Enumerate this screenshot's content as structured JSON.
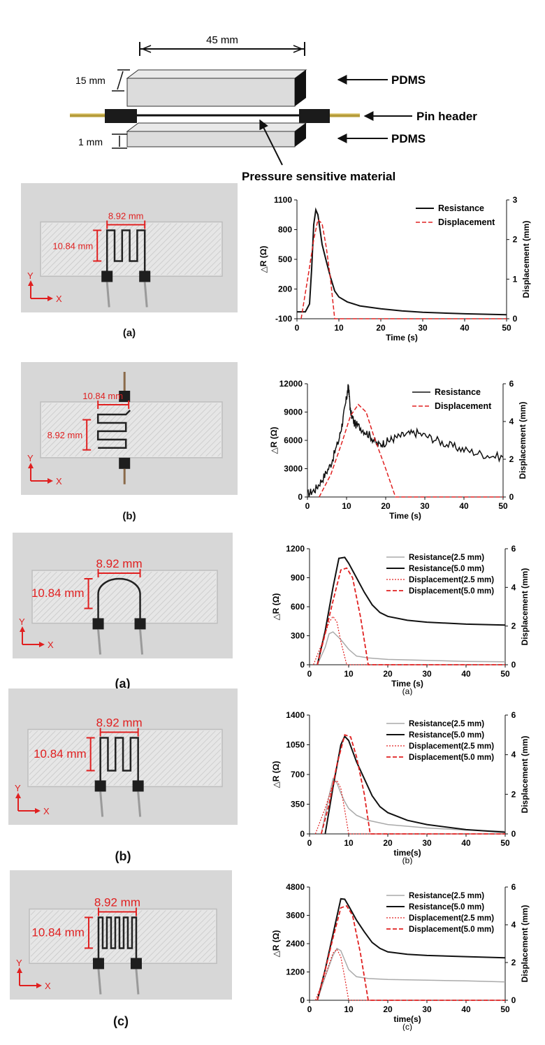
{
  "schematic": {
    "dim_length": "45 mm",
    "dim_thickness_top": "15 mm",
    "dim_thickness_bottom": "1 mm",
    "label_top": "PDMS",
    "label_middle": "Pin header",
    "label_bottom": "PDMS",
    "label_sensor": "Pressure sensitive material"
  },
  "photos": [
    {
      "label": "(a)",
      "width_dim": "8.92 mm",
      "height_dim": "10.84 mm",
      "axis_y": "Y",
      "axis_x": "X"
    },
    {
      "label": "(b)",
      "width_dim": "10.84 mm",
      "height_dim": "8.92 mm",
      "axis_y": "Y",
      "axis_x": "X"
    },
    {
      "label": "(a)",
      "width_dim": "8.92 mm",
      "height_dim": "10.84 mm",
      "axis_y": "Y",
      "axis_x": "X"
    },
    {
      "label": "(b)",
      "width_dim": "8.92 mm",
      "height_dim": "10.84 mm",
      "axis_y": "Y",
      "axis_x": "X"
    },
    {
      "label": "(c)",
      "width_dim": "8.92 mm",
      "height_dim": "10.84 mm",
      "axis_y": "Y",
      "axis_x": "X"
    }
  ],
  "colors": {
    "red": "#e02020",
    "black": "#111111",
    "gray": "#aaaaaa"
  },
  "chart_data": [
    {
      "type": "line",
      "xlabel": "Time (s)",
      "ylabel": "△R (Ω)",
      "y2label": "Displacement (mm)",
      "caption": "",
      "xlim": [
        0,
        50
      ],
      "xticks": [
        0,
        10,
        20,
        30,
        40,
        50
      ],
      "ylim": [
        -100,
        1100
      ],
      "yticks": [
        -100,
        200,
        500,
        800,
        1100
      ],
      "y2lim": [
        0,
        3
      ],
      "y2ticks": [
        0,
        1,
        2,
        3
      ],
      "legend": "top-right",
      "noise": false,
      "series": [
        {
          "name": "Resistance",
          "axis": "left",
          "color": "#111111",
          "dash": false,
          "width": 2,
          "x": [
            0,
            2,
            3,
            3.5,
            4,
            4.5,
            5,
            5.5,
            6,
            7,
            8,
            9,
            10,
            12,
            15,
            20,
            25,
            30,
            40,
            50
          ],
          "y": [
            -30,
            -30,
            50,
            400,
            850,
            1000,
            950,
            800,
            650,
            480,
            320,
            180,
            120,
            70,
            30,
            0,
            -20,
            -35,
            -50,
            -60
          ]
        },
        {
          "name": "Displacement",
          "axis": "right",
          "color": "#e02020",
          "dash": true,
          "width": 1.5,
          "x": [
            1,
            3,
            4,
            5,
            6,
            7,
            8,
            9,
            50
          ],
          "y": [
            0,
            1.3,
            2.0,
            2.5,
            2.4,
            1.8,
            1.0,
            0,
            0
          ]
        }
      ]
    },
    {
      "type": "line",
      "xlabel": "Time (s)",
      "ylabel": "△R (Ω)",
      "y2label": "Displacement (mm)",
      "caption": "",
      "xlim": [
        0,
        50
      ],
      "xticks": [
        0,
        10,
        20,
        30,
        40,
        50
      ],
      "ylim": [
        0,
        12000
      ],
      "yticks": [
        0,
        3000,
        6000,
        9000,
        12000
      ],
      "y2lim": [
        0,
        6
      ],
      "y2ticks": [
        0,
        2,
        4,
        6
      ],
      "legend": "top-right",
      "noise": true,
      "series": [
        {
          "name": "Resistance",
          "axis": "left",
          "color": "#111111",
          "dash": false,
          "width": 1.5,
          "x": [
            0,
            2,
            4,
            6,
            8,
            9,
            10,
            10.5,
            11,
            12,
            14,
            16,
            18,
            20,
            22,
            25,
            28,
            32,
            36,
            40,
            45,
            50
          ],
          "y": [
            300,
            800,
            2000,
            3500,
            6000,
            8000,
            10500,
            11800,
            9000,
            7800,
            7200,
            6500,
            5500,
            5800,
            6200,
            6600,
            6800,
            6200,
            5500,
            5000,
            4500,
            4200
          ]
        },
        {
          "name": "Displacement",
          "axis": "right",
          "color": "#e02020",
          "dash": true,
          "width": 1.5,
          "x": [
            3,
            6,
            9,
            11,
            13,
            15,
            17,
            20,
            22.5,
            50
          ],
          "y": [
            0,
            1.2,
            3.0,
            4.3,
            4.9,
            4.5,
            3.2,
            1.5,
            0,
            0
          ]
        }
      ]
    },
    {
      "type": "line",
      "xlabel": "Time (s)",
      "ylabel": "△R (Ω)",
      "y2label": "Displacement (mm)",
      "caption": "(a)",
      "xlim": [
        0,
        50
      ],
      "xticks": [
        0,
        10,
        20,
        30,
        40,
        50
      ],
      "ylim": [
        0,
        1200
      ],
      "yticks": [
        0,
        300,
        600,
        900,
        1200
      ],
      "y2lim": [
        0,
        6
      ],
      "y2ticks": [
        0,
        2,
        4,
        6
      ],
      "legend": "top-right",
      "noise": false,
      "series": [
        {
          "name": "Resistance(2.5 mm)",
          "axis": "left",
          "color": "#aaaaaa",
          "dash": false,
          "width": 1.5,
          "x": [
            2,
            4,
            5,
            6,
            8,
            10,
            12,
            15,
            20,
            30,
            40,
            50
          ],
          "y": [
            0,
            180,
            320,
            340,
            260,
            160,
            90,
            70,
            55,
            45,
            35,
            30
          ]
        },
        {
          "name": "Resistance(5.0 mm)",
          "axis": "left",
          "color": "#111111",
          "dash": false,
          "width": 2,
          "x": [
            2,
            4,
            6,
            7.5,
            9,
            10,
            12,
            14,
            16,
            18,
            20,
            25,
            30,
            40,
            50
          ],
          "y": [
            0,
            350,
            800,
            1100,
            1110,
            1050,
            900,
            750,
            620,
            540,
            500,
            460,
            440,
            420,
            410
          ]
        },
        {
          "name": "Displacement(2.5 mm)",
          "axis": "right",
          "color": "#e02020",
          "dash": "dot",
          "width": 1.2,
          "x": [
            1,
            3,
            5,
            6,
            7,
            8,
            9.5,
            50
          ],
          "y": [
            0,
            1.0,
            2.2,
            2.5,
            2.2,
            1.2,
            0,
            0
          ]
        },
        {
          "name": "Displacement(5.0 mm)",
          "axis": "right",
          "color": "#e02020",
          "dash": true,
          "width": 1.8,
          "x": [
            2,
            4,
            6,
            8,
            9.5,
            11,
            13,
            15,
            50
          ],
          "y": [
            0,
            1.6,
            3.3,
            4.9,
            5.0,
            4.5,
            2.5,
            0,
            0
          ]
        }
      ]
    },
    {
      "type": "line",
      "xlabel": "time(s)",
      "ylabel": "△R (Ω)",
      "y2label": "Displacement (mm)",
      "caption": "(b)",
      "xlim": [
        0,
        50
      ],
      "xticks": [
        0,
        10,
        20,
        30,
        40,
        50
      ],
      "ylim": [
        0,
        1400
      ],
      "yticks": [
        0,
        350,
        700,
        1050,
        1400
      ],
      "y2lim": [
        0,
        6
      ],
      "y2ticks": [
        0,
        2,
        4,
        6
      ],
      "legend": "top-right",
      "noise": false,
      "series": [
        {
          "name": "Resistance(2.5 mm)",
          "axis": "left",
          "color": "#aaaaaa",
          "dash": false,
          "width": 1.5,
          "x": [
            3,
            5,
            6,
            7,
            8,
            9,
            10,
            12,
            15,
            20,
            30,
            40,
            50
          ],
          "y": [
            0,
            450,
            650,
            600,
            480,
            380,
            300,
            220,
            160,
            110,
            70,
            45,
            30
          ]
        },
        {
          "name": "Resistance(5.0 mm)",
          "axis": "left",
          "color": "#111111",
          "dash": false,
          "width": 2,
          "x": [
            4,
            6,
            8,
            9,
            10,
            12,
            14,
            16,
            18,
            20,
            25,
            30,
            40,
            50
          ],
          "y": [
            0,
            550,
            1050,
            1150,
            1100,
            850,
            650,
            450,
            320,
            250,
            160,
            110,
            50,
            20
          ]
        },
        {
          "name": "Displacement(2.5 mm)",
          "axis": "right",
          "color": "#e02020",
          "dash": "dot",
          "width": 1.2,
          "x": [
            1.5,
            4,
            6,
            7,
            8,
            9,
            10,
            50
          ],
          "y": [
            0,
            1.3,
            2.5,
            2.7,
            2.3,
            1.2,
            0,
            0
          ]
        },
        {
          "name": "Displacement(5.0 mm)",
          "axis": "right",
          "color": "#e02020",
          "dash": true,
          "width": 1.8,
          "x": [
            3,
            5,
            7,
            9,
            10.5,
            12,
            14,
            15.5,
            50
          ],
          "y": [
            0,
            1.5,
            3.5,
            5.0,
            4.9,
            3.9,
            2.0,
            0,
            0
          ]
        }
      ]
    },
    {
      "type": "line",
      "xlabel": "time(s)",
      "ylabel": "△R (Ω)",
      "y2label": "Displacement (mm)",
      "caption": "(c)",
      "xlim": [
        0,
        50
      ],
      "xticks": [
        0,
        10,
        20,
        30,
        40,
        50
      ],
      "ylim": [
        0,
        4800
      ],
      "yticks": [
        0,
        1200,
        2400,
        3600,
        4800
      ],
      "y2lim": [
        0,
        6
      ],
      "y2ticks": [
        0,
        2,
        4,
        6
      ],
      "legend": "top-right",
      "noise": false,
      "series": [
        {
          "name": "Resistance(2.5 mm)",
          "axis": "left",
          "color": "#aaaaaa",
          "dash": false,
          "width": 1.5,
          "x": [
            2,
            4,
            6,
            7,
            8,
            9,
            10,
            12,
            15,
            20,
            30,
            40,
            50
          ],
          "y": [
            0,
            1000,
            1900,
            2200,
            2100,
            1700,
            1300,
            1000,
            920,
            880,
            850,
            820,
            780
          ]
        },
        {
          "name": "Resistance(5.0 mm)",
          "axis": "left",
          "color": "#111111",
          "dash": false,
          "width": 2,
          "x": [
            2,
            4,
            6,
            8,
            9,
            10,
            12,
            14,
            16,
            18,
            20,
            25,
            30,
            40,
            50
          ],
          "y": [
            0,
            1300,
            2800,
            4300,
            4280,
            4000,
            3400,
            2900,
            2450,
            2200,
            2050,
            1950,
            1900,
            1850,
            1800
          ]
        },
        {
          "name": "Displacement(2.5 mm)",
          "axis": "right",
          "color": "#e02020",
          "dash": "dot",
          "width": 1.2,
          "x": [
            1.5,
            4,
            6,
            7,
            8,
            9,
            10,
            50
          ],
          "y": [
            0,
            1.3,
            2.5,
            2.7,
            2.3,
            1.2,
            0,
            0
          ]
        },
        {
          "name": "Displacement(5.0 mm)",
          "axis": "right",
          "color": "#e02020",
          "dash": true,
          "width": 1.8,
          "x": [
            2,
            4,
            6,
            8,
            9.5,
            11,
            13,
            15,
            50
          ],
          "y": [
            0,
            1.6,
            3.3,
            4.9,
            5.0,
            4.5,
            2.5,
            0,
            0
          ]
        }
      ]
    }
  ]
}
